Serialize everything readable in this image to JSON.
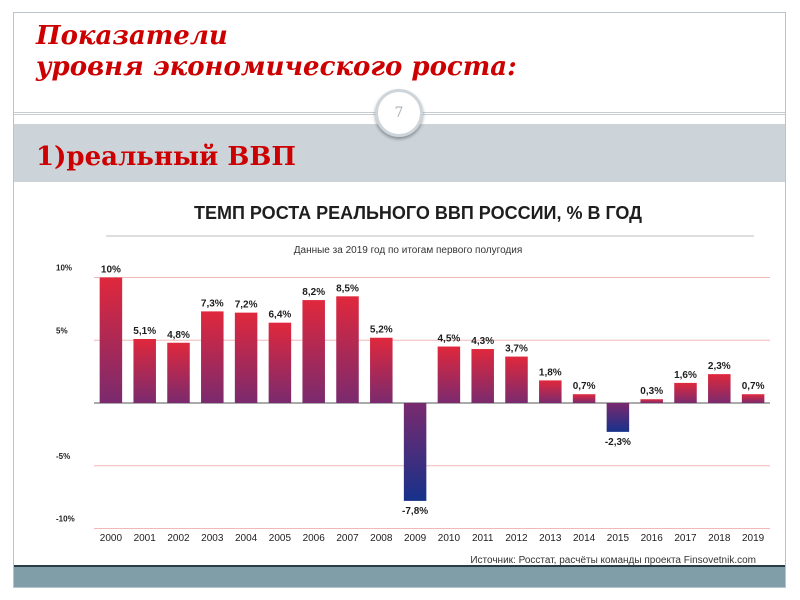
{
  "slide": {
    "title_line1": "Показатели",
    "title_line2": "уровня экономического роста:",
    "page_number": "7",
    "subtitle": "1)реальный ВВП"
  },
  "colors": {
    "title_red": "#cc0000",
    "bar_top_red": "#e0283c",
    "bar_bottom_purple": "#7a2a6e",
    "negative_blue": "#16318a",
    "band_gray": "#ccd4da",
    "bottom_bar": "#7f9ea8"
  },
  "chart_data": {
    "type": "bar",
    "title": "ТЕМП РОСТА РЕАЛЬНОГО ВВП РОССИИ, % В ГОД",
    "subtitle": "Данные за 2019 год по итогам первого полугодия",
    "source": "Источник: Росстат, расчёты команды проекта Finsovetnik.com",
    "categories": [
      "2000",
      "2001",
      "2002",
      "2003",
      "2004",
      "2005",
      "2006",
      "2007",
      "2008",
      "2009",
      "2010",
      "2011",
      "2012",
      "2013",
      "2014",
      "2015",
      "2016",
      "2017",
      "2018",
      "2019"
    ],
    "values": [
      10,
      5.1,
      4.8,
      7.3,
      7.2,
      6.4,
      8.2,
      8.5,
      5.2,
      -7.8,
      4.5,
      4.3,
      3.7,
      1.8,
      0.7,
      -2.3,
      0.3,
      1.6,
      2.3,
      0.7
    ],
    "value_labels": [
      "10%",
      "5,1%",
      "4,8%",
      "7,3%",
      "7,2%",
      "6,4%",
      "8,2%",
      "8,5%",
      "5,2%",
      "-7,8%",
      "4,5%",
      "4,3%",
      "3,7%",
      "1,8%",
      "0,7%",
      "-2,3%",
      "0,3%",
      "1,6%",
      "2,3%",
      "0,7%"
    ],
    "y_ticks": [
      10,
      5,
      -5,
      -10
    ],
    "y_tick_labels": [
      "10%",
      "5%",
      "-5%",
      "-10%"
    ],
    "ylim": [
      -10,
      10
    ],
    "grid": true,
    "legend": "none"
  }
}
